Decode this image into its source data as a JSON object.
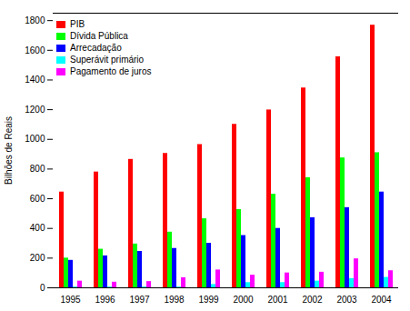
{
  "chart_data": {
    "type": "bar",
    "ylabel": "Bilhões de Reais",
    "categories": [
      "1995",
      "1996",
      "1997",
      "1998",
      "1999",
      "2000",
      "2001",
      "2002",
      "2003",
      "2004"
    ],
    "series": [
      {
        "name": "PIB",
        "color": "#ff0000",
        "values": [
          645,
          780,
          865,
          905,
          965,
          1101,
          1198,
          1346,
          1556,
          1769
        ]
      },
      {
        "name": "Dívida Pública",
        "color": "#00ff00",
        "values": [
          200,
          260,
          295,
          375,
          465,
          527,
          630,
          742,
          875,
          910
        ]
      },
      {
        "name": "Arrecadação",
        "color": "#0000ff",
        "values": [
          185,
          215,
          245,
          265,
          300,
          352,
          400,
          472,
          540,
          645
        ]
      },
      {
        "name": "Superávit primário",
        "color": "#00ffff",
        "values": [
          5,
          5,
          5,
          5,
          22,
          35,
          35,
          45,
          62,
          70
        ]
      },
      {
        "name": "Pagamento de juros",
        "color": "#ff00ff",
        "values": [
          45,
          38,
          42,
          68,
          120,
          85,
          100,
          105,
          195,
          115
        ]
      }
    ],
    "ylim": [
      0,
      1850
    ],
    "yticks": [
      0,
      200,
      400,
      600,
      800,
      1000,
      1200,
      1400,
      1600,
      1800
    ],
    "grid": false,
    "legend": "upper left"
  }
}
